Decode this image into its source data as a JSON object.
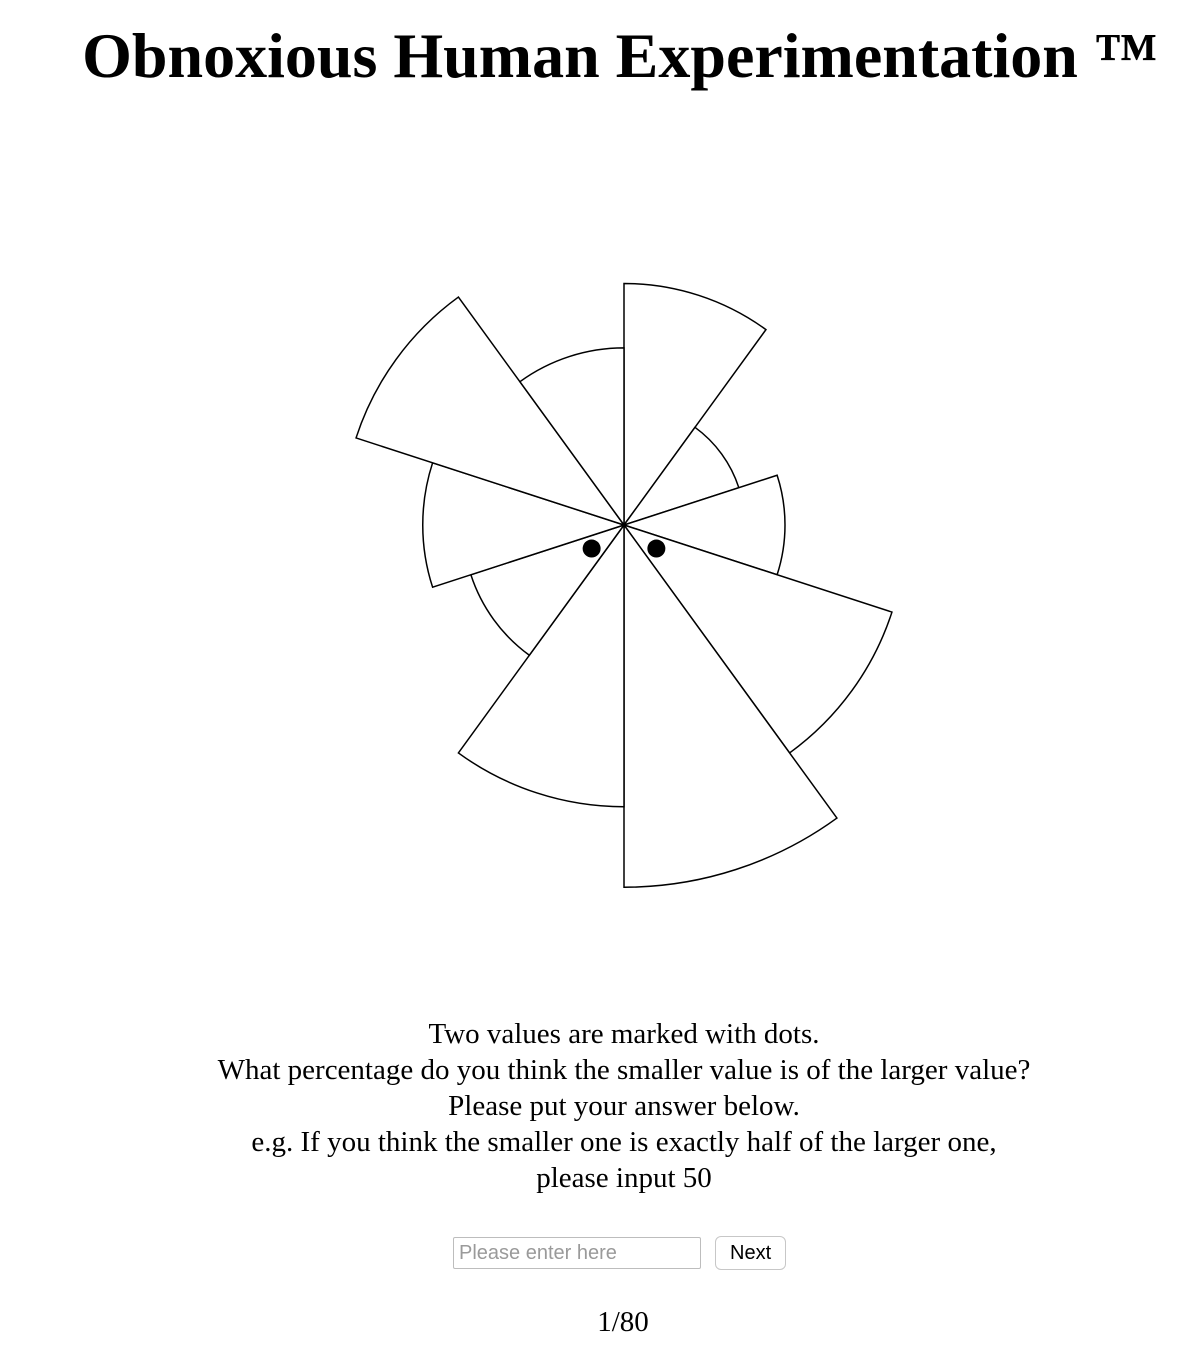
{
  "page": {
    "title": "Obnoxious Human Experimentation ™"
  },
  "chart_data": {
    "type": "radial bar",
    "values": [
      300,
      150,
      200,
      350,
      450,
      350,
      200,
      250,
      350,
      220
    ],
    "start_angle_deg": 0,
    "marked_indices": [
      3,
      6
    ]
  },
  "instructions": {
    "line1": "Two values are marked with dots.",
    "line2": "What percentage do you think the smaller value is of the larger value?",
    "line3": "Please put your answer below.",
    "line4": "e.g. If you think the smaller one is exactly half of the larger one,",
    "line5": "please input 50"
  },
  "form": {
    "input_placeholder": "Please enter here",
    "input_value": "",
    "next_label": "Next"
  },
  "progress": {
    "text": "1/80"
  }
}
